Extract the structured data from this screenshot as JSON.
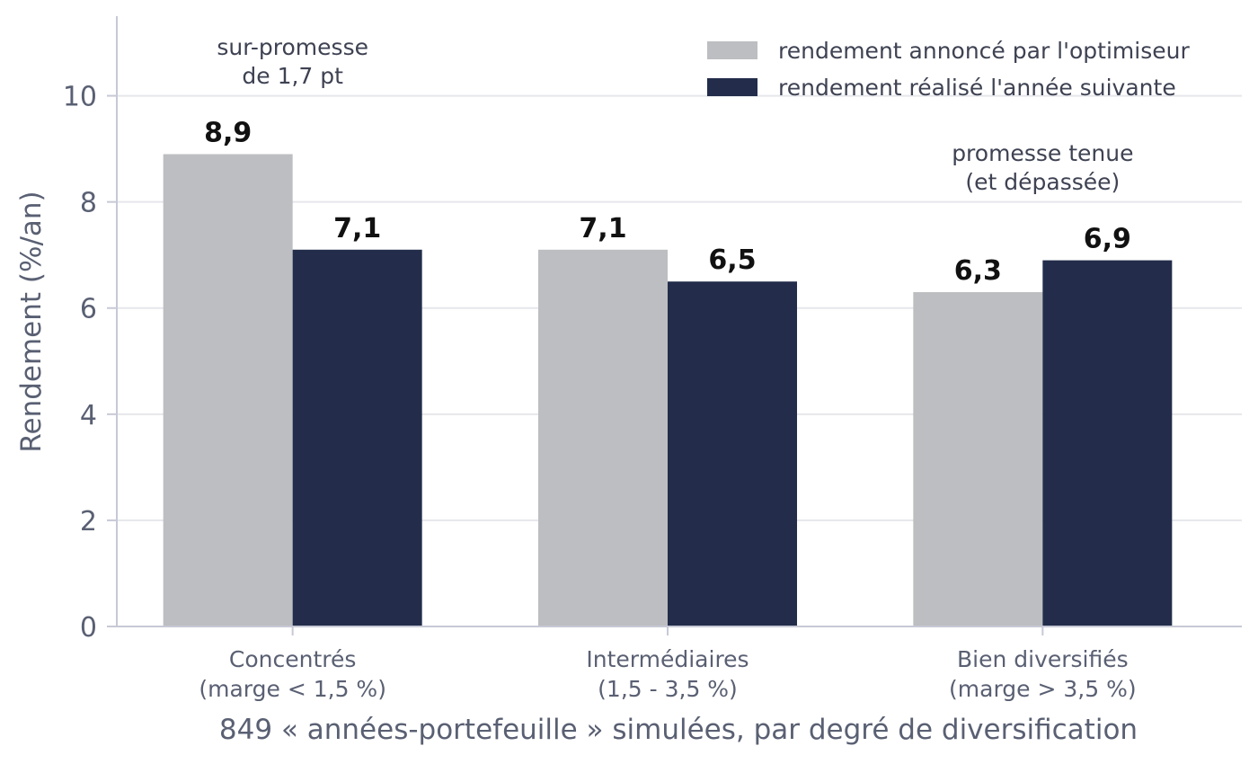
{
  "chart_data": {
    "type": "bar",
    "categories": [
      [
        "Concentrés",
        "(marge < 1,5 %)"
      ],
      [
        "Intermédiaires",
        "(1,5 - 3,5 %)"
      ],
      [
        "Bien diversifiés",
        "(marge > 3,5 %)"
      ]
    ],
    "series": [
      {
        "name": "rendement annoncé par l'optimiseur",
        "values": [
          8.9,
          7.1,
          6.3
        ],
        "labels": [
          "8,9",
          "7,1",
          "6,3"
        ],
        "color": "#bdbec1"
      },
      {
        "name": "rendement réalisé l'année suivante",
        "values": [
          7.1,
          6.5,
          6.9
        ],
        "labels": [
          "7,1",
          "6,5",
          "6,9"
        ],
        "color": "#232d4b"
      }
    ],
    "xlabel": "849 « années-portefeuille » simulées, par degré de diversification",
    "ylabel": "Rendement (%/an)",
    "ylim": [
      0,
      11.5
    ],
    "yticks": [
      0,
      2,
      4,
      6,
      8,
      10
    ],
    "grid": true,
    "legend_position": "top-right",
    "annotations": [
      {
        "category_index": 0,
        "lines": [
          "sur-promesse",
          "de 1,7 pt"
        ]
      },
      {
        "category_index": 2,
        "lines": [
          "promesse tenue",
          "(et dépassée)"
        ]
      }
    ]
  }
}
